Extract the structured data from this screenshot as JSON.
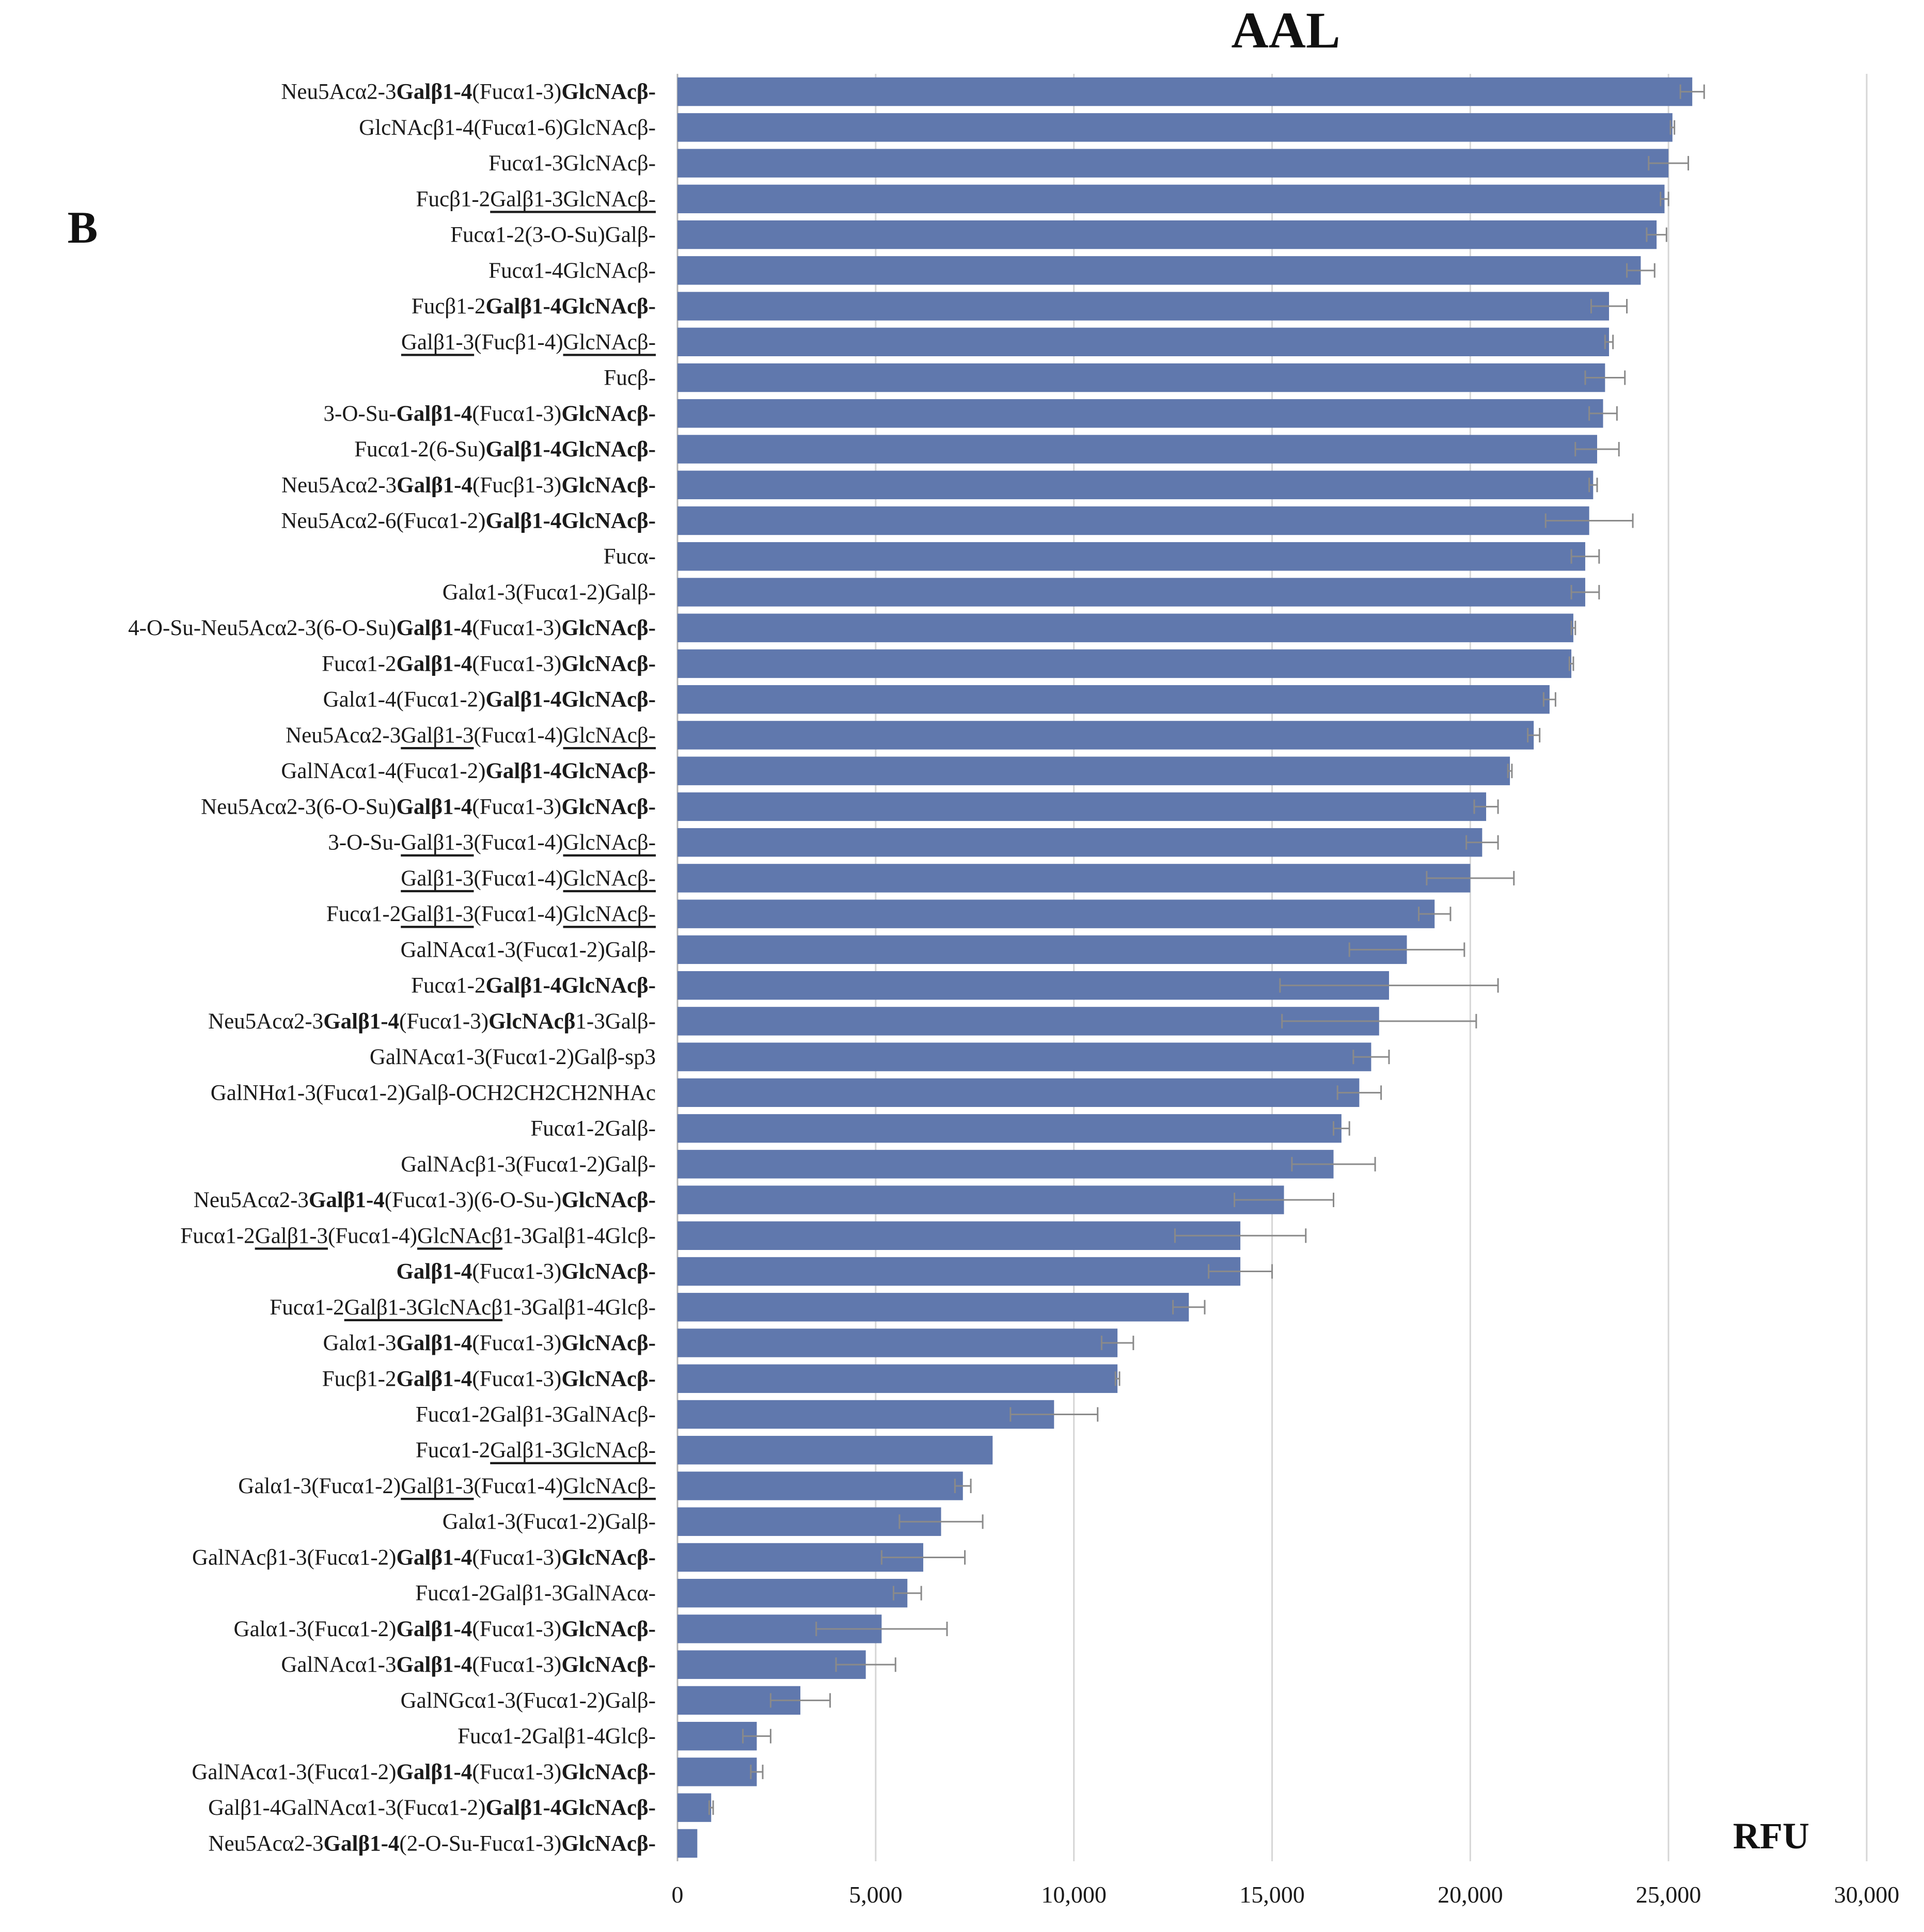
{
  "chart_data": {
    "type": "bar",
    "orientation": "horizontal",
    "title": "AAL",
    "panel_label": "B",
    "xlabel": "RFU",
    "ylabel": "",
    "xlim": [
      0,
      30000
    ],
    "xticks": [
      0,
      5000,
      10000,
      15000,
      20000,
      25000,
      30000
    ],
    "xtick_labels": [
      "0",
      "5,000",
      "10,000",
      "15,000",
      "20,000",
      "25,000",
      "30,000"
    ],
    "grid": "vertical",
    "bar_color": "#6078ad",
    "error_bar_color": "#8a8a8a",
    "bars": [
      {
        "segments": [
          {
            "t": "Neu5Acα2-3"
          },
          {
            "t": "Galβ1-4",
            "b": true
          },
          {
            "t": "(Fucα1-3)"
          },
          {
            "t": "GlcNAcβ-",
            "b": true
          }
        ],
        "value": 25600,
        "error": 300
      },
      {
        "segments": [
          {
            "t": "GlcNAcβ1-4(Fucα1-6)GlcNAcβ-"
          }
        ],
        "value": 25100,
        "error": 50
      },
      {
        "segments": [
          {
            "t": "Fucα1-3GlcNAcβ-"
          }
        ],
        "value": 25000,
        "error": 500
      },
      {
        "segments": [
          {
            "t": "Fucβ1-2"
          },
          {
            "t": "Galβ1-3GlcNAcβ-",
            "u": true
          }
        ],
        "value": 24900,
        "error": 100
      },
      {
        "segments": [
          {
            "t": "Fucα1-2(3-O-Su)Galβ-"
          }
        ],
        "value": 24700,
        "error": 250
      },
      {
        "segments": [
          {
            "t": "Fucα1-4GlcNAcβ-"
          }
        ],
        "value": 24300,
        "error": 350
      },
      {
        "segments": [
          {
            "t": "Fucβ1-2"
          },
          {
            "t": "Galβ1-4GlcNAcβ-",
            "b": true
          }
        ],
        "value": 23500,
        "error": 450
      },
      {
        "segments": [
          {
            "t": "Galβ1-3",
            "u": true
          },
          {
            "t": "(Fucβ1-4)"
          },
          {
            "t": "GlcNAcβ-",
            "u": true
          }
        ],
        "value": 23500,
        "error": 100
      },
      {
        "segments": [
          {
            "t": "Fucβ-"
          }
        ],
        "value": 23400,
        "error": 500
      },
      {
        "segments": [
          {
            "t": "3-O-Su-"
          },
          {
            "t": "Galβ1-4",
            "b": true
          },
          {
            "t": "(Fucα1-3)"
          },
          {
            "t": "GlcNAcβ-",
            "b": true
          }
        ],
        "value": 23350,
        "error": 350
      },
      {
        "segments": [
          {
            "t": "Fucα1-2(6-Su)"
          },
          {
            "t": "Galβ1-4GlcNAcβ-",
            "b": true
          }
        ],
        "value": 23200,
        "error": 550
      },
      {
        "segments": [
          {
            "t": "Neu5Acα2-3"
          },
          {
            "t": "Galβ1-4",
            "b": true
          },
          {
            "t": "(Fucβ1-3)"
          },
          {
            "t": "GlcNAcβ-",
            "b": true
          }
        ],
        "value": 23100,
        "error": 100
      },
      {
        "segments": [
          {
            "t": "Neu5Acα2-6(Fucα1-2)"
          },
          {
            "t": "Galβ1-4GlcNAcβ-",
            "b": true
          }
        ],
        "value": 23000,
        "error": 1100
      },
      {
        "segments": [
          {
            "t": "Fucα-"
          }
        ],
        "value": 22900,
        "error": 350
      },
      {
        "segments": [
          {
            "t": "Galα1-3(Fucα1-2)Galβ-"
          }
        ],
        "value": 22900,
        "error": 350
      },
      {
        "segments": [
          {
            "t": "4-O-Su-Neu5Acα2-3(6-O-Su)"
          },
          {
            "t": "Galβ1-4",
            "b": true
          },
          {
            "t": "(Fucα1-3)"
          },
          {
            "t": "GlcNAcβ-",
            "b": true
          }
        ],
        "value": 22600,
        "error": 50
      },
      {
        "segments": [
          {
            "t": "Fucα1-2"
          },
          {
            "t": "Galβ1-4",
            "b": true
          },
          {
            "t": "(Fucα1-3)"
          },
          {
            "t": "GlcNAcβ-",
            "b": true
          }
        ],
        "value": 22550,
        "error": 50
      },
      {
        "segments": [
          {
            "t": "Galα1-4(Fucα1-2)"
          },
          {
            "t": "Galβ1-4GlcNAcβ-",
            "b": true
          }
        ],
        "value": 22000,
        "error": 150
      },
      {
        "segments": [
          {
            "t": "Neu5Acα2-3"
          },
          {
            "t": "Galβ1-3",
            "u": true
          },
          {
            "t": "(Fucα1-4)"
          },
          {
            "t": "GlcNAcβ-",
            "u": true
          }
        ],
        "value": 21600,
        "error": 150
      },
      {
        "segments": [
          {
            "t": "GalNAcα1-4(Fucα1-2)"
          },
          {
            "t": "Galβ1-4GlcNAcβ-",
            "b": true
          }
        ],
        "value": 21000,
        "error": 50
      },
      {
        "segments": [
          {
            "t": "Neu5Acα2-3(6-O-Su)"
          },
          {
            "t": "Galβ1-4",
            "b": true
          },
          {
            "t": "(Fucα1-3)"
          },
          {
            "t": "GlcNAcβ-",
            "b": true
          }
        ],
        "value": 20400,
        "error": 300
      },
      {
        "segments": [
          {
            "t": "3-O-Su-"
          },
          {
            "t": "Galβ1-3",
            "u": true
          },
          {
            "t": "(Fucα1-4)"
          },
          {
            "t": "GlcNAcβ-",
            "u": true
          }
        ],
        "value": 20300,
        "error": 400
      },
      {
        "segments": [
          {
            "t": "Galβ1-3",
            "u": true
          },
          {
            "t": "(Fucα1-4)"
          },
          {
            "t": "GlcNAcβ-",
            "u": true
          }
        ],
        "value": 20000,
        "error": 1100
      },
      {
        "segments": [
          {
            "t": "Fucα1-2"
          },
          {
            "t": "Galβ1-3",
            "u": true
          },
          {
            "t": "(Fucα1-4)"
          },
          {
            "t": "GlcNAcβ-",
            "u": true
          }
        ],
        "value": 19100,
        "error": 400
      },
      {
        "segments": [
          {
            "t": "GalNAcα1-3(Fucα1-2)Galβ-"
          }
        ],
        "value": 18400,
        "error": 1450
      },
      {
        "segments": [
          {
            "t": "Fucα1-2"
          },
          {
            "t": "Galβ1-4GlcNAcβ-",
            "b": true
          }
        ],
        "value": 17950,
        "error": 2750
      },
      {
        "segments": [
          {
            "t": "Neu5Acα2-3"
          },
          {
            "t": "Galβ1-4",
            "b": true
          },
          {
            "t": "(Fucα1-3)"
          },
          {
            "t": "GlcNAcβ",
            "b": true
          },
          {
            "t": "1-3Galβ-"
          }
        ],
        "value": 17700,
        "error": 2450
      },
      {
        "segments": [
          {
            "t": "GalNAcα1-3(Fucα1-2)Galβ-sp3"
          }
        ],
        "value": 17500,
        "error": 450
      },
      {
        "segments": [
          {
            "t": "GalNHα1-3(Fucα1-2)Galβ-OCH2CH2CH2NHAc"
          }
        ],
        "value": 17200,
        "error": 550
      },
      {
        "segments": [
          {
            "t": "Fucα1-2Galβ-"
          }
        ],
        "value": 16750,
        "error": 200
      },
      {
        "segments": [
          {
            "t": "GalNAcβ1-3(Fucα1-2)Galβ-"
          }
        ],
        "value": 16550,
        "error": 1050
      },
      {
        "segments": [
          {
            "t": "Neu5Acα2-3"
          },
          {
            "t": "Galβ1-4",
            "b": true
          },
          {
            "t": "(Fucα1-3)(6-O-Su-)"
          },
          {
            "t": "GlcNAcβ-",
            "b": true
          }
        ],
        "value": 15300,
        "error": 1250
      },
      {
        "segments": [
          {
            "t": "Fucα1-2"
          },
          {
            "t": "Galβ1-3",
            "u": true
          },
          {
            "t": "(Fucα1-4)"
          },
          {
            "t": "GlcNAcβ",
            "u": true
          },
          {
            "t": "1-3Galβ1-4Glcβ-"
          }
        ],
        "value": 14200,
        "error": 1650
      },
      {
        "segments": [
          {
            "t": "Galβ1-4",
            "b": true
          },
          {
            "t": "(Fucα1-3)"
          },
          {
            "t": "GlcNAcβ-",
            "b": true
          }
        ],
        "value": 14200,
        "error": 800
      },
      {
        "segments": [
          {
            "t": "Fucα1-2"
          },
          {
            "t": "Galβ1-3GlcNAcβ",
            "u": true
          },
          {
            "t": "1-3Galβ1-4Glcβ-"
          }
        ],
        "value": 12900,
        "error": 400
      },
      {
        "segments": [
          {
            "t": "Galα1-3"
          },
          {
            "t": "Galβ1-4",
            "b": true
          },
          {
            "t": "(Fucα1-3)"
          },
          {
            "t": "GlcNAcβ-",
            "b": true
          }
        ],
        "value": 11100,
        "error": 400
      },
      {
        "segments": [
          {
            "t": "Fucβ1-2"
          },
          {
            "t": "Galβ1-4",
            "b": true
          },
          {
            "t": "(Fucα1-3)"
          },
          {
            "t": "GlcNAcβ-",
            "b": true
          }
        ],
        "value": 11100,
        "error": 50
      },
      {
        "segments": [
          {
            "t": "Fucα1-2Galβ1-3GalNAcβ-"
          }
        ],
        "value": 9500,
        "error": 1100
      },
      {
        "segments": [
          {
            "t": "Fucα1-2"
          },
          {
            "t": "Galβ1-3GlcNAcβ-",
            "u": true
          }
        ],
        "value": 7950,
        "error": 0
      },
      {
        "segments": [
          {
            "t": "Galα1-3(Fucα1-2)"
          },
          {
            "t": "Galβ1-3",
            "u": true
          },
          {
            "t": "(Fucα1-4)"
          },
          {
            "t": "GlcNAcβ-",
            "u": true
          }
        ],
        "value": 7200,
        "error": 200
      },
      {
        "segments": [
          {
            "t": "Galα1-3(Fucα1-2)Galβ-"
          }
        ],
        "value": 6650,
        "error": 1050
      },
      {
        "segments": [
          {
            "t": "GalNAcβ1-3(Fucα1-2)"
          },
          {
            "t": "Galβ1-4",
            "b": true
          },
          {
            "t": "(Fucα1-3)"
          },
          {
            "t": "GlcNAcβ-",
            "b": true
          }
        ],
        "value": 6200,
        "error": 1050
      },
      {
        "segments": [
          {
            "t": "Fucα1-2Galβ1-3GalNAcα-"
          }
        ],
        "value": 5800,
        "error": 350
      },
      {
        "segments": [
          {
            "t": "Galα1-3(Fucα1-2)"
          },
          {
            "t": "Galβ1-4",
            "b": true
          },
          {
            "t": "(Fucα1-3)"
          },
          {
            "t": "GlcNAcβ-",
            "b": true
          }
        ],
        "value": 5150,
        "error": 1650
      },
      {
        "segments": [
          {
            "t": "GalNAcα1-3"
          },
          {
            "t": "Galβ1-4",
            "b": true
          },
          {
            "t": "(Fucα1-3)"
          },
          {
            "t": "GlcNAcβ-",
            "b": true
          }
        ],
        "value": 4750,
        "error": 750
      },
      {
        "segments": [
          {
            "t": "GalNGcα1-3(Fucα1-2)Galβ-"
          }
        ],
        "value": 3100,
        "error": 750
      },
      {
        "segments": [
          {
            "t": "Fucα1-2Galβ1-4Glcβ-"
          }
        ],
        "value": 2000,
        "error": 350
      },
      {
        "segments": [
          {
            "t": "GalNAcα1-3(Fucα1-2)"
          },
          {
            "t": "Galβ1-4",
            "b": true
          },
          {
            "t": "(Fucα1-3)"
          },
          {
            "t": "GlcNAcβ-",
            "b": true
          }
        ],
        "value": 2000,
        "error": 150
      },
      {
        "segments": [
          {
            "t": "Galβ1-4GalNAcα1-3(Fucα1-2)"
          },
          {
            "t": "Galβ1-4GlcNAcβ-",
            "b": true
          }
        ],
        "value": 850,
        "error": 50
      },
      {
        "segments": [
          {
            "t": "Neu5Acα2-3"
          },
          {
            "t": "Galβ1-4",
            "b": true
          },
          {
            "t": "(2-O-Su-Fucα1-3)"
          },
          {
            "t": "GlcNAcβ-",
            "b": true
          }
        ],
        "value": 500,
        "error": 0
      }
    ]
  }
}
